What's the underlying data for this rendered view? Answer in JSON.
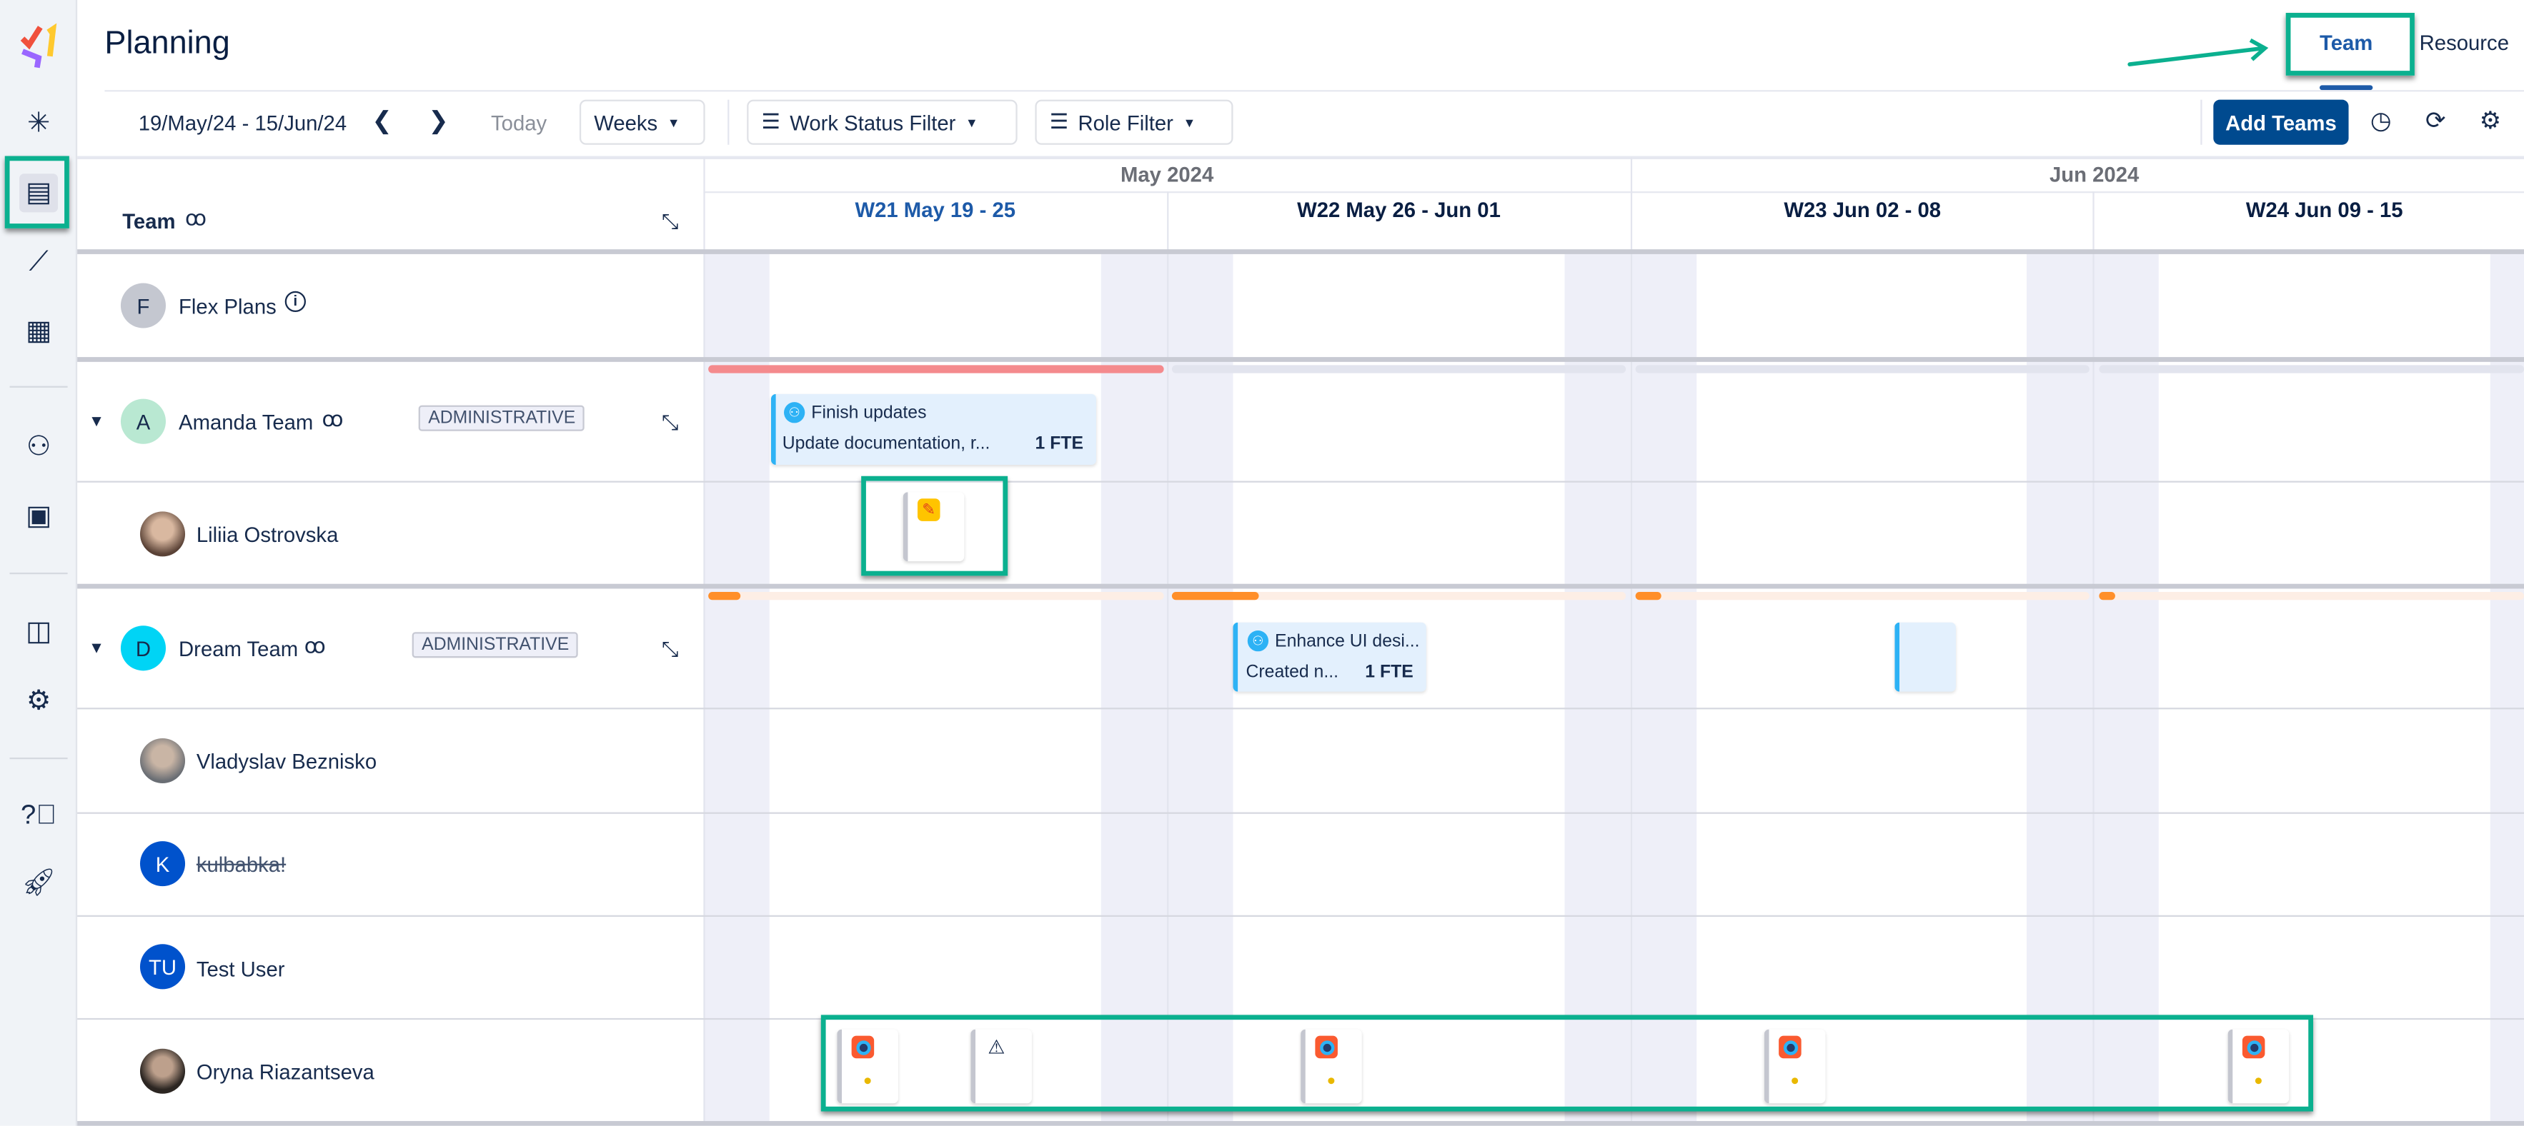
{
  "header": {
    "title": "Planning",
    "tabs": [
      {
        "label": "Team",
        "active": true
      },
      {
        "label": "Resource",
        "active": false
      }
    ]
  },
  "sidebar": {
    "items": [
      "sparkle-icon",
      "planning-icon",
      "chart-line-icon",
      "calendar-grid-icon",
      "people-icon",
      "contact-card-icon",
      "apps-icon",
      "settings-icon",
      "help-icon",
      "rocket-icon"
    ],
    "active": "planning-icon"
  },
  "toolbar": {
    "date_range": "19/May/24 - 15/Jun/24",
    "today": "Today",
    "view": "Weeks",
    "work_status_filter": "Work Status Filter",
    "role_filter": "Role Filter",
    "add_teams": "Add Teams"
  },
  "timeline": {
    "months": [
      "May 2024",
      "Jun 2024"
    ],
    "weeks": [
      "W21 May 19 - 25",
      "W22 May 26 - Jun 01",
      "W23 Jun 02 - 08",
      "W24 Jun 09 - 15"
    ],
    "current_week": "W21 May 19 - 25"
  },
  "grid": {
    "column_header": "Team",
    "rows": [
      {
        "type": "plan",
        "initial": "F",
        "name": "Flex Plans"
      },
      {
        "type": "team",
        "initial": "A",
        "name": "Amanda Team",
        "badge": "ADMINISTRATIVE"
      },
      {
        "type": "member",
        "name": "Liliia Ostrovska"
      },
      {
        "type": "team",
        "initial": "D",
        "name": "Dream Team",
        "badge": "ADMINISTRATIVE"
      },
      {
        "type": "member",
        "name": "Vladyslav Beznisko"
      },
      {
        "type": "member",
        "initial": "K",
        "name": "kulbabka!",
        "strikethrough": true
      },
      {
        "type": "member",
        "initial": "TU",
        "name": "Test User"
      },
      {
        "type": "member",
        "name": "Oryna Riazantseva"
      }
    ]
  },
  "cards": [
    {
      "title": "Finish updates",
      "desc": "Update documentation, r...",
      "fte": "1 FTE"
    },
    {
      "title": "Enhance UI desi...",
      "desc": "Created n...",
      "fte": "1 FTE"
    }
  ],
  "colors": {
    "accent": "#004a8f",
    "highlight": "#0bb08f",
    "overload": "#f48a8d",
    "partial": "#ff8f2a",
    "card_border": "#2db2f5"
  }
}
